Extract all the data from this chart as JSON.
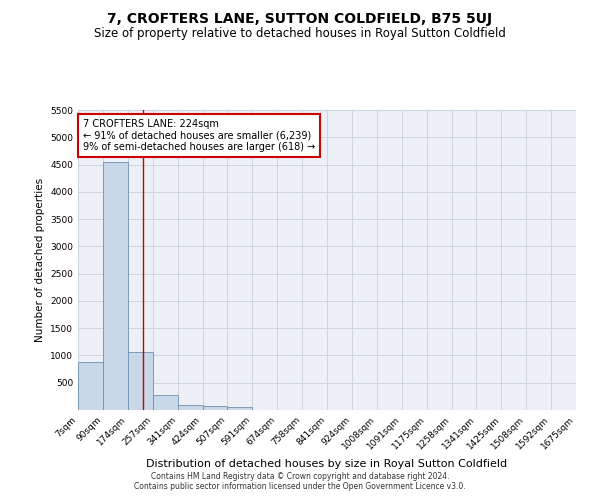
{
  "title": "7, CROFTERS LANE, SUTTON COLDFIELD, B75 5UJ",
  "subtitle": "Size of property relative to detached houses in Royal Sutton Coldfield",
  "xlabel": "Distribution of detached houses by size in Royal Sutton Coldfield",
  "ylabel": "Number of detached properties",
  "annotation_line1": "7 CROFTERS LANE: 224sqm",
  "annotation_line2": "← 91% of detached houses are smaller (6,239)",
  "annotation_line3": "9% of semi-detached houses are larger (618) →",
  "footer1": "Contains HM Land Registry data © Crown copyright and database right 2024.",
  "footer2": "Contains public sector information licensed under the Open Government Licence v3.0.",
  "bin_labels": [
    "7sqm",
    "90sqm",
    "174sqm",
    "257sqm",
    "341sqm",
    "424sqm",
    "507sqm",
    "591sqm",
    "674sqm",
    "758sqm",
    "841sqm",
    "924sqm",
    "1008sqm",
    "1091sqm",
    "1175sqm",
    "1258sqm",
    "1341sqm",
    "1425sqm",
    "1508sqm",
    "1592sqm",
    "1675sqm"
  ],
  "bar_values": [
    880,
    4550,
    1060,
    280,
    90,
    80,
    50,
    0,
    0,
    0,
    0,
    0,
    0,
    0,
    0,
    0,
    0,
    0,
    0,
    0
  ],
  "bar_color": "#c8d8e8",
  "bar_edge_color": "#7090b0",
  "property_line_bin": 2.6,
  "ylim": [
    0,
    5500
  ],
  "yticks": [
    0,
    500,
    1000,
    1500,
    2000,
    2500,
    3000,
    3500,
    4000,
    4500,
    5000,
    5500
  ],
  "grid_color": "#cdd5e0",
  "bg_color": "#edf1f7",
  "annotation_box_color": "#cc0000",
  "title_fontsize": 10,
  "subtitle_fontsize": 8.5
}
